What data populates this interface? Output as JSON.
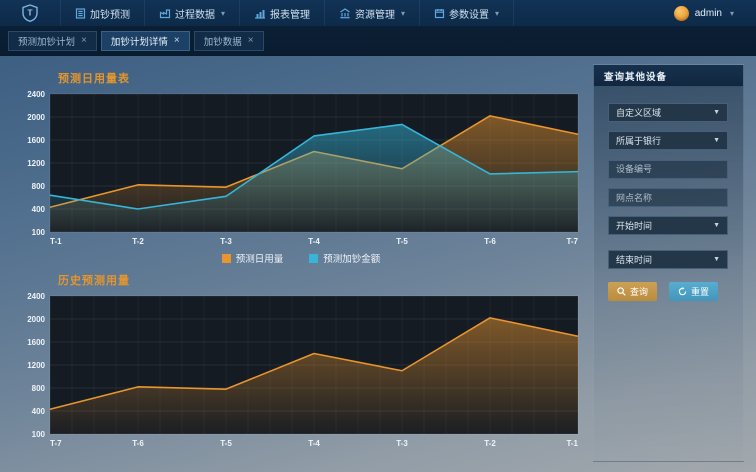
{
  "navbar": {
    "menu": [
      {
        "label": "加钞预测",
        "icon": "document-icon",
        "has_dropdown": false
      },
      {
        "label": "过程数据",
        "icon": "process-icon",
        "has_dropdown": true
      },
      {
        "label": "报表管理",
        "icon": "barchart-icon",
        "has_dropdown": false
      },
      {
        "label": "资源管理",
        "icon": "bank-icon",
        "has_dropdown": true
      },
      {
        "label": "参数设置",
        "icon": "settings-icon",
        "has_dropdown": true
      }
    ],
    "user": {
      "name": "admin"
    }
  },
  "tabs": [
    {
      "label": "预测加钞计划",
      "active": false
    },
    {
      "label": "加钞计划详情",
      "active": true
    },
    {
      "label": "加钞数据",
      "active": false
    }
  ],
  "sidebar": {
    "title": "查询其他设备",
    "region_select": "自定义区域",
    "bank_select": "所属于银行",
    "device_id_placeholder": "设备编号",
    "branch_name_placeholder": "网点名称",
    "start_time_select": "开始时间",
    "end_time_select": "结束时间",
    "search_label": "查询",
    "reset_label": "重置"
  },
  "colors": {
    "orange": "#e8952e",
    "cyan": "#35b6d9",
    "plot_bg": "#151b23",
    "grid": "#ffffff",
    "axis_text": "#eef3f8"
  },
  "chart_data": [
    {
      "type": "line",
      "title": "预测日用量表",
      "x": [
        "T-1",
        "T-2",
        "T-3",
        "T-4",
        "T-5",
        "T-6",
        "T-7"
      ],
      "series": [
        {
          "name": "预测日用量",
          "color": "#e8952e",
          "values": [
            430,
            820,
            780,
            1400,
            1100,
            2020,
            1700
          ]
        },
        {
          "name": "预测加钞金额",
          "color": "#35b6d9",
          "values": [
            640,
            400,
            620,
            1670,
            1870,
            1010,
            1050
          ]
        }
      ],
      "ylim": [
        0,
        2400
      ],
      "ytick_labels": [
        "2400",
        "2000",
        "1600",
        "1200",
        "800",
        "400",
        "100"
      ],
      "grid": true,
      "legend_position": "bottom",
      "area_fill": true
    },
    {
      "type": "line",
      "title": "历史预测用量",
      "x": [
        "T-7",
        "T-6",
        "T-5",
        "T-4",
        "T-3",
        "T-2",
        "T-1"
      ],
      "series": [
        {
          "name": "历史预测用量",
          "color": "#e8952e",
          "values": [
            430,
            820,
            780,
            1400,
            1100,
            2020,
            1700
          ]
        }
      ],
      "ylim": [
        0,
        2400
      ],
      "ytick_labels": [
        "2400",
        "2000",
        "1600",
        "1200",
        "800",
        "400",
        "100"
      ],
      "grid": true,
      "legend_position": "none",
      "area_fill": true
    }
  ]
}
